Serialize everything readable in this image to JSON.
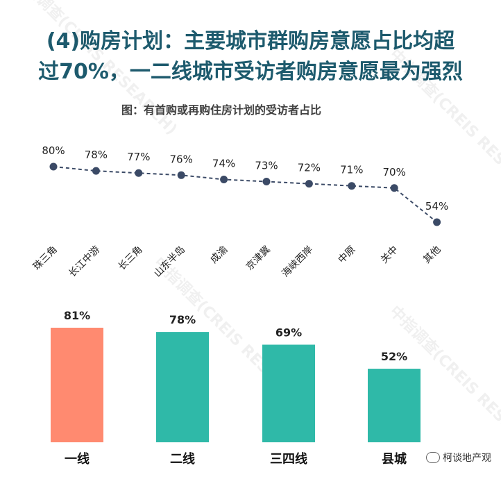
{
  "headline": {
    "line1": "(4)购房计划：主要城市群购房意愿占比均超",
    "line2": "过70%，一二线城市受访者购房意愿最为强烈"
  },
  "watermark": "中指调查(CREIS RESEARCH)",
  "brand": "柯谈地产观",
  "chart_data": [
    {
      "type": "line",
      "title": "图：有首购或再购住房计划的受访者占比",
      "categories": [
        "珠三角",
        "长江中游",
        "长三角",
        "山东半岛",
        "成渝",
        "京津冀",
        "海峡西岸",
        "中原",
        "关中",
        "其他"
      ],
      "values": [
        80,
        78,
        77,
        76,
        74,
        73,
        72,
        71,
        70,
        54
      ],
      "value_labels": [
        "80%",
        "78%",
        "77%",
        "76%",
        "74%",
        "73%",
        "72%",
        "71%",
        "70%",
        "54%"
      ],
      "line_style": "dashed",
      "ylim": [
        50,
        85
      ],
      "colors": {
        "line": "#3b4a66",
        "marker": "#3b4a66"
      }
    },
    {
      "type": "bar",
      "categories": [
        "一线",
        "二线",
        "三四线",
        "县城"
      ],
      "values": [
        81,
        78,
        69,
        52
      ],
      "value_labels": [
        "81%",
        "78%",
        "69%",
        "52%"
      ],
      "ylim": [
        0,
        100
      ],
      "colors": [
        "#ff8a70",
        "#2fb9a8",
        "#2fb9a8",
        "#2fb9a8"
      ]
    }
  ]
}
